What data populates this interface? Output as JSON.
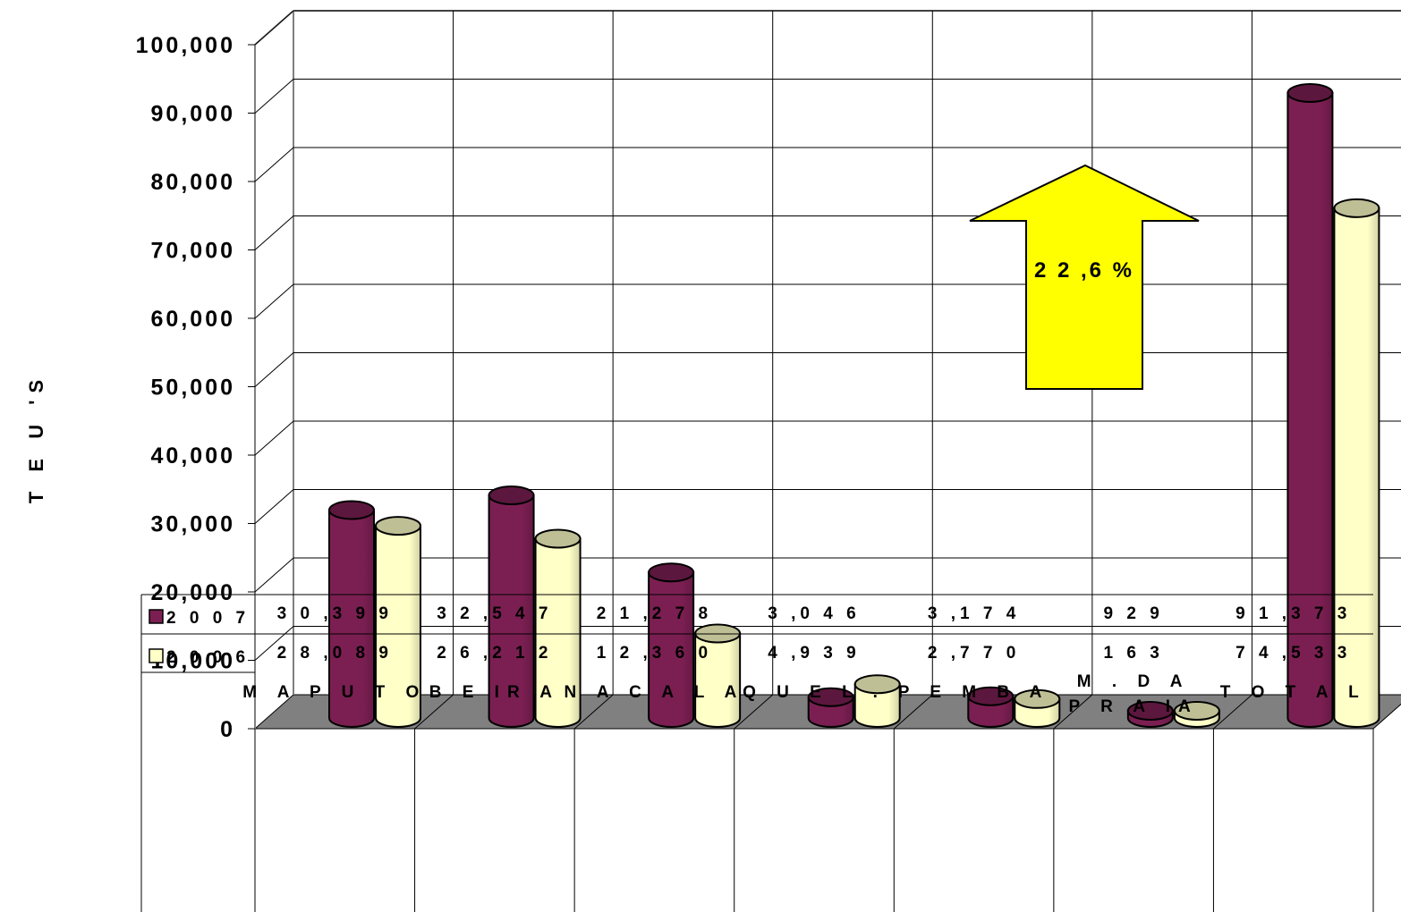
{
  "chart_data": {
    "type": "bar",
    "ylabel": "T E U 'S",
    "ylim": [
      0,
      100000
    ],
    "yticks": [
      "0",
      "10,000",
      "20,000",
      "30,000",
      "40,000",
      "50,000",
      "60,000",
      "70,000",
      "80,000",
      "90,000",
      "100,000"
    ],
    "categories": [
      [
        "M A P U T O"
      ],
      [
        "B E IR A"
      ],
      [
        "N A C A L A"
      ],
      [
        "Q U E L ."
      ],
      [
        "P E M B A"
      ],
      [
        "M . D A",
        "P R A IA"
      ],
      [
        "T O T A L"
      ]
    ],
    "series": [
      {
        "name": "2 0 0 7",
        "color": "#7b1f52",
        "values": [
          30399,
          32547,
          21278,
          3046,
          3174,
          929,
          91373
        ],
        "labels": [
          "3 0 ,3 9 9",
          "3 2 ,5 4 7",
          "2 1 ,2 7 8",
          "3 ,0 4 6",
          "3 ,1 7 4",
          "9 2 9",
          "9 1 ,3 7 3"
        ]
      },
      {
        "name": "2 0 0 6",
        "color": "#ffffc8",
        "values": [
          28089,
          26212,
          12360,
          4939,
          2770,
          163,
          74533
        ],
        "labels": [
          "2 8 ,0 8 9",
          "2 6 ,2 1 2",
          "1 2 ,3 6 0",
          "4 ,9 3 9",
          "2 ,7 7 0",
          "1 6 3",
          "7 4 ,5 3 3"
        ]
      }
    ],
    "grid": true,
    "legend": "data-table",
    "annotation": {
      "text": "2 2 ,6 %",
      "shape": "up-arrow",
      "color": "#ffff00"
    }
  }
}
